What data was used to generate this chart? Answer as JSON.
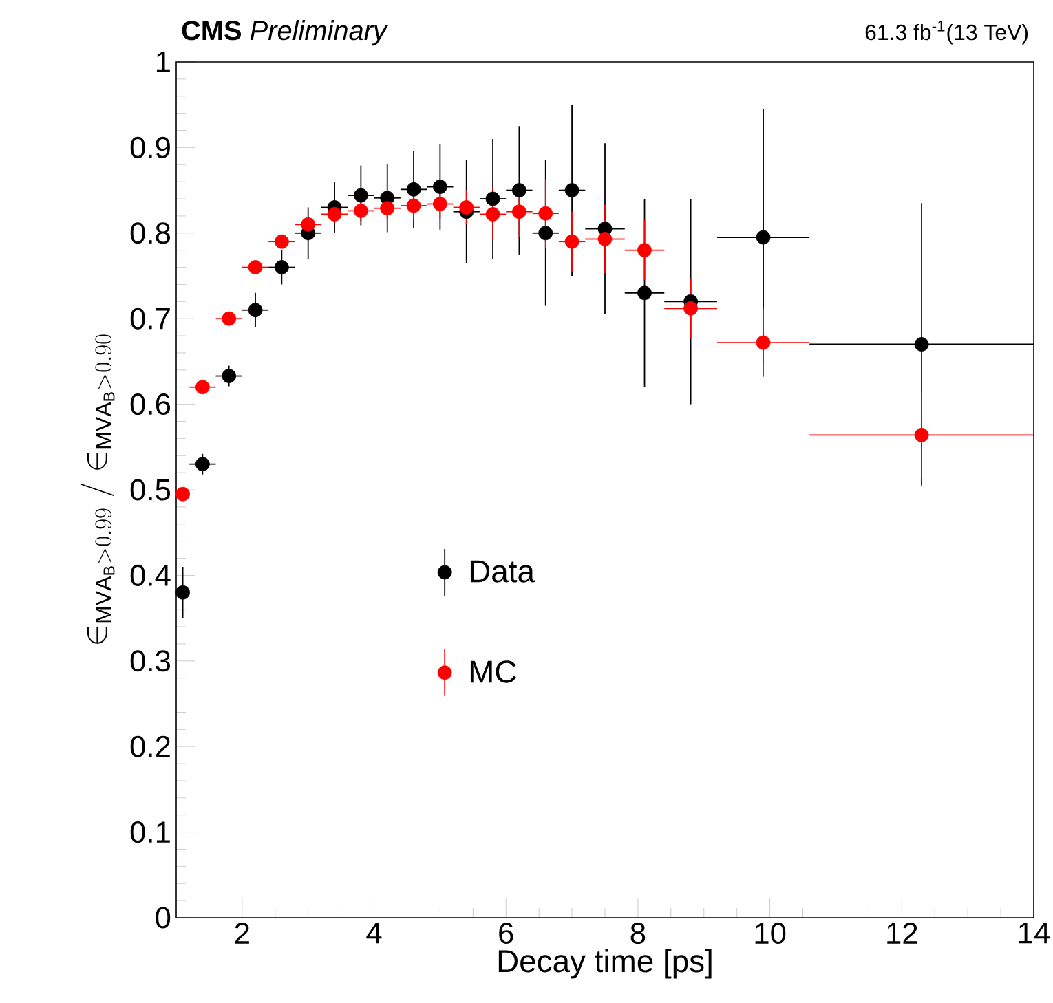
{
  "chart_data": {
    "type": "scatter",
    "title": "**CMS** *Preliminary*",
    "subtitle": "61.3 fb$^{-1}$(13 TeV)",
    "xlabel": "Decay time [ps]",
    "ylabel": "\\in_{\\mathrm{MVA_B} > 0.99}/\\in_{\\mathrm{MVA_B} > 0.90}",
    "x": [
      1.1,
      1.4,
      1.8,
      2.2,
      2.6,
      3.0,
      3.4,
      3.8,
      4.2,
      4.6,
      5.0,
      5.4,
      5.8,
      6.2,
      6.6,
      7.0,
      7.5,
      8.1,
      8.8,
      9.9,
      12.3
    ],
    "series": [
      {
        "name": "Data",
        "color": "#000000",
        "values": [
          0.38,
          0.53,
          0.633,
          0.71,
          0.76,
          0.8,
          0.83,
          0.844,
          0.841,
          0.851,
          0.854,
          0.825,
          0.84,
          0.85,
          0.8,
          0.85,
          0.805,
          0.73,
          0.72,
          0.795,
          0.67
        ],
        "errors": [
          0.03,
          0.012,
          0.012,
          0.02,
          0.02,
          0.03,
          0.03,
          0.035,
          0.04,
          0.045,
          0.05,
          0.06,
          0.07,
          0.075,
          0.085,
          0.1,
          0.1,
          0.11,
          0.12,
          0.15,
          0.165
        ],
        "xerrors": [
          0.1,
          0.2,
          0.2,
          0.2,
          0.2,
          0.2,
          0.2,
          0.2,
          0.2,
          0.2,
          0.2,
          0.2,
          0.2,
          0.2,
          0.2,
          0.2,
          0.3,
          0.3,
          0.4,
          0.7,
          1.7
        ]
      },
      {
        "name": "MC",
        "color": "#ff0000",
        "values": [
          0.495,
          0.62,
          0.7,
          0.76,
          0.79,
          0.81,
          0.822,
          0.826,
          0.829,
          0.832,
          0.834,
          0.83,
          0.822,
          0.825,
          0.823,
          0.79,
          0.793,
          0.78,
          0.712,
          0.672,
          0.564
        ],
        "errors": [
          0.005,
          0.005,
          0.005,
          0.005,
          0.005,
          0.005,
          0.01,
          0.012,
          0.012,
          0.015,
          0.017,
          0.02,
          0.03,
          0.03,
          0.04,
          0.035,
          0.04,
          0.035,
          0.035,
          0.04,
          0.05
        ],
        "xerrors": [
          0.1,
          0.2,
          0.2,
          0.2,
          0.2,
          0.2,
          0.2,
          0.2,
          0.2,
          0.2,
          0.2,
          0.2,
          0.2,
          0.2,
          0.2,
          0.2,
          0.3,
          0.3,
          0.4,
          0.7,
          1.7
        ]
      }
    ],
    "xlim": [
      1.0,
      14
    ],
    "ylim": [
      0,
      1
    ],
    "xticks": [
      2,
      4,
      6,
      8,
      10,
      12,
      14
    ],
    "yticks": [
      0,
      0.1,
      0.2,
      0.3,
      0.4,
      0.5,
      0.6,
      0.7,
      0.8,
      0.9,
      1
    ],
    "legend": "left",
    "marker": "circle"
  }
}
